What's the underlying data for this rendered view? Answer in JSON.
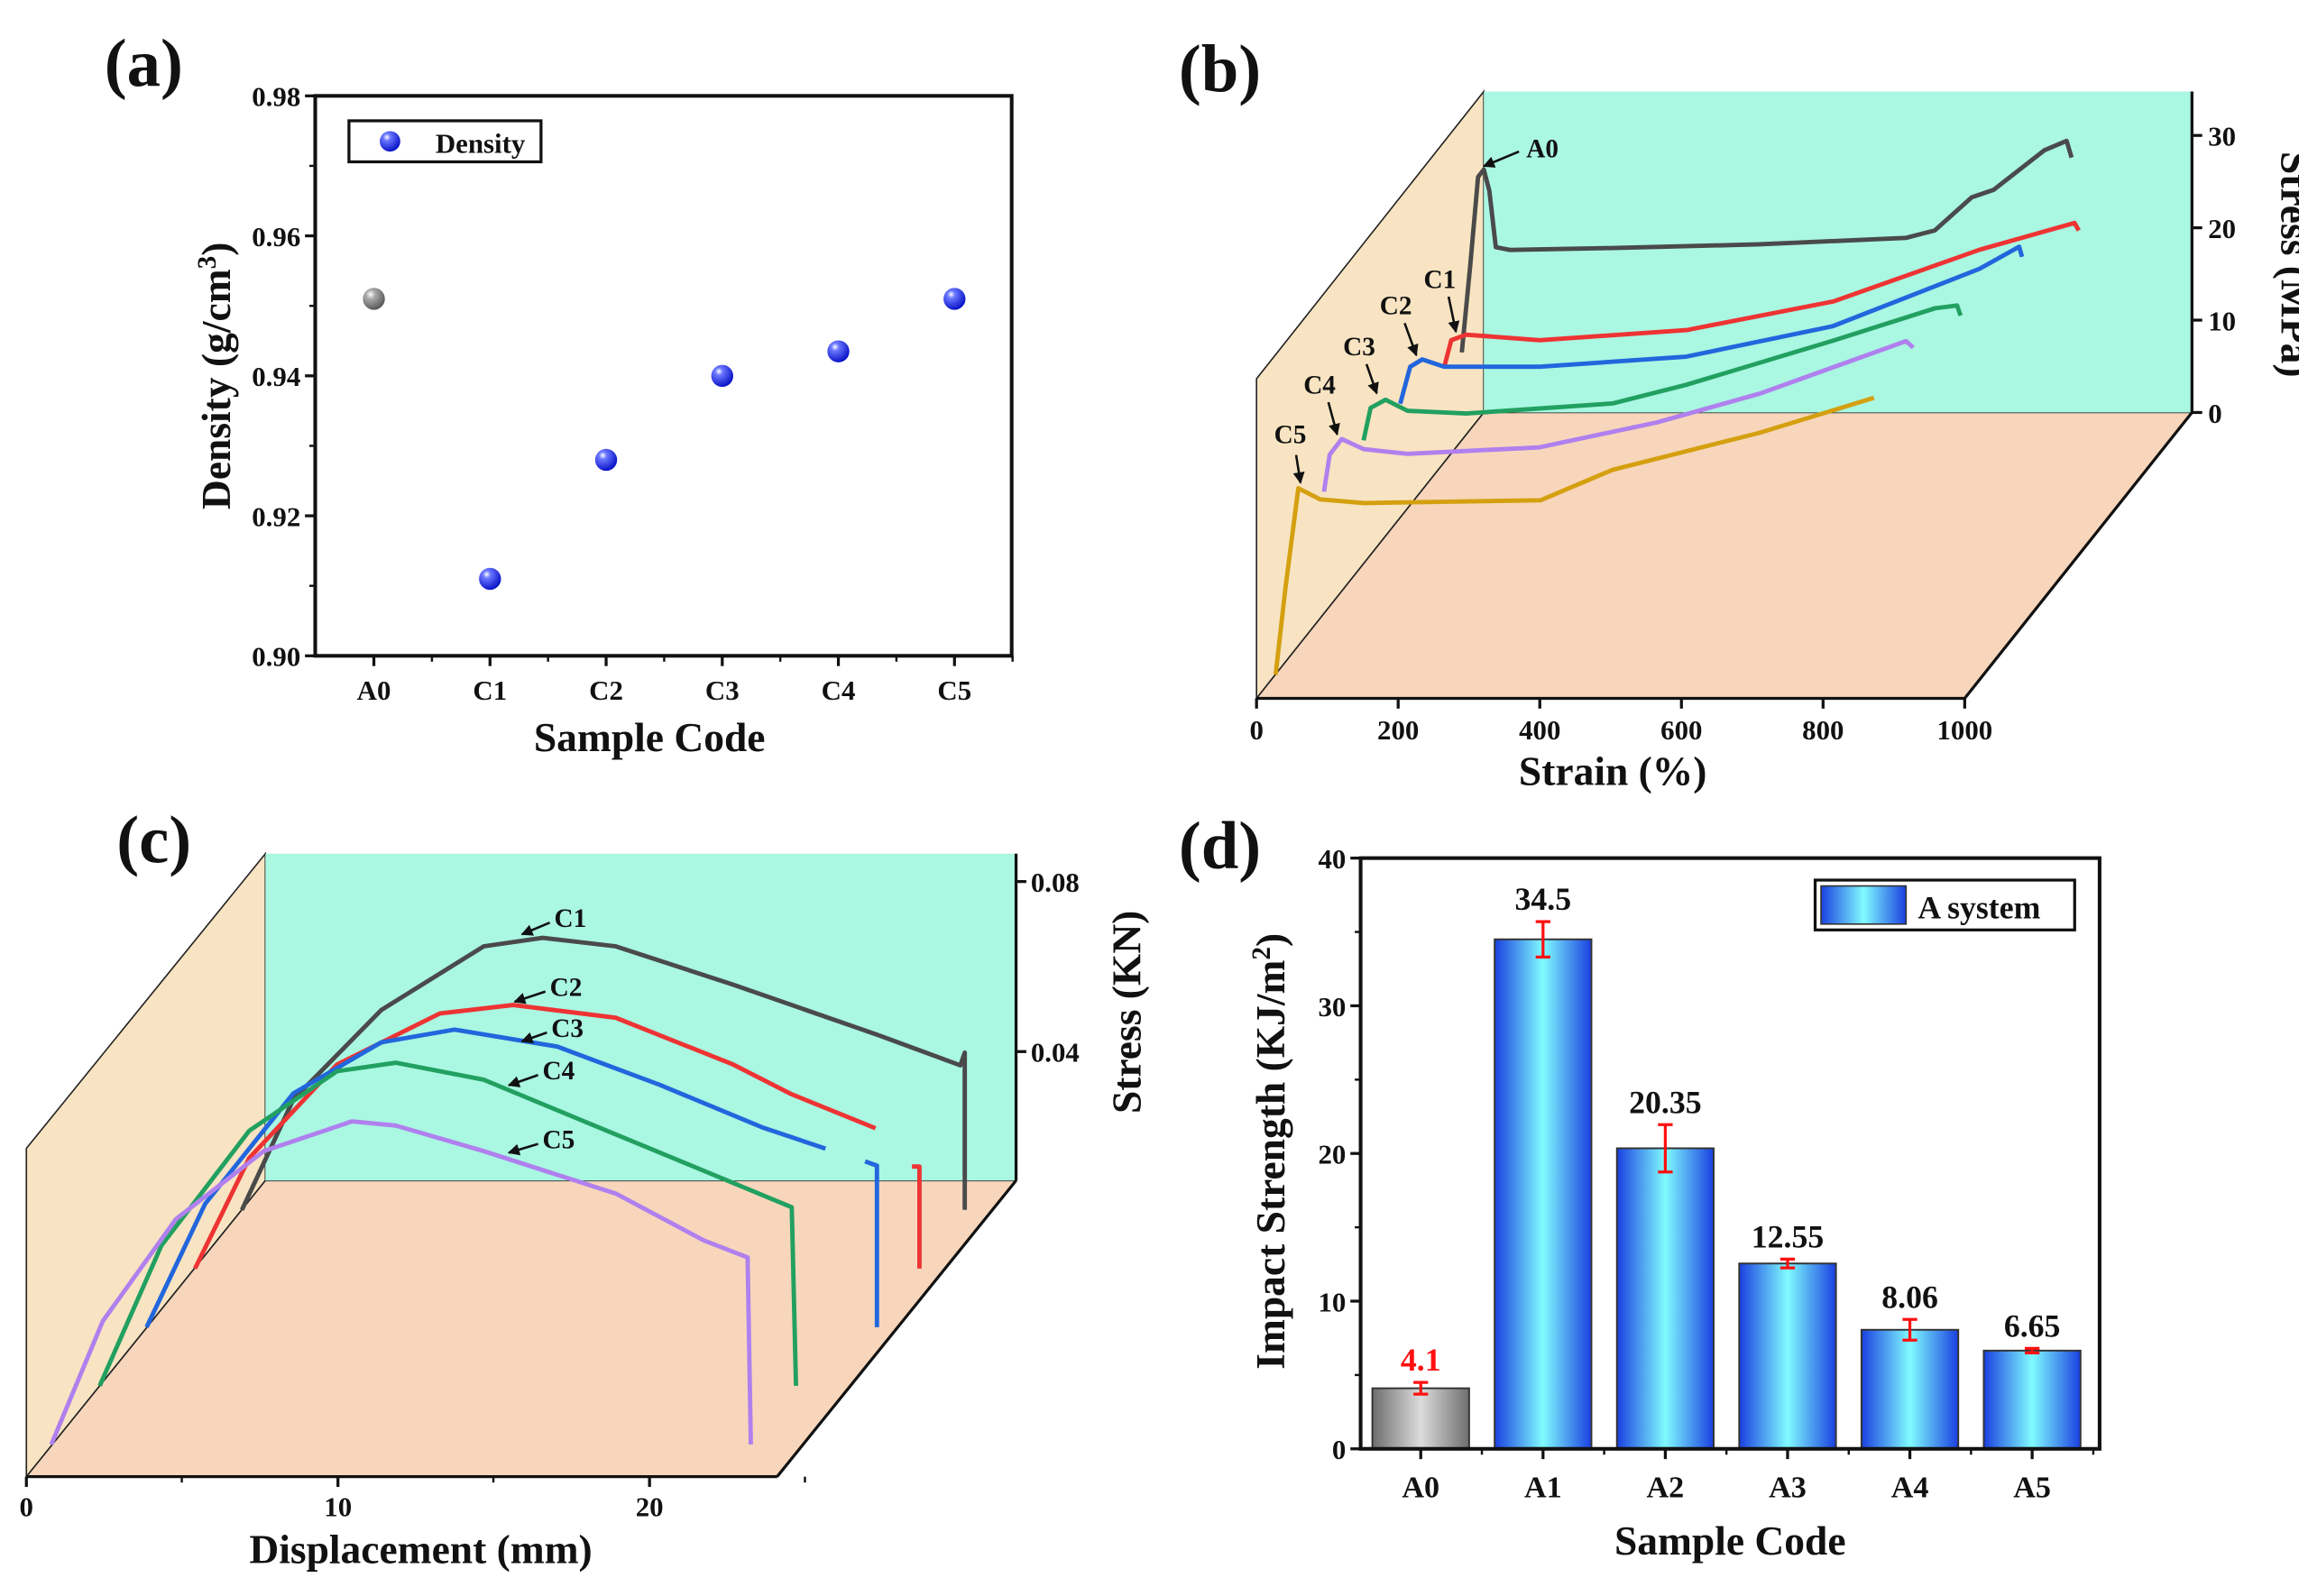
{
  "chart_data": [
    {
      "type": "scatter",
      "panel_label": "(a)",
      "xlabel": "Sample Code",
      "ylabel": "Density (g/cm",
      "ylabel_sup": "3",
      "ylabel_end": ")",
      "categories": [
        "A0",
        "C1",
        "C2",
        "C3",
        "C4",
        "C5"
      ],
      "values": [
        0.951,
        0.911,
        0.928,
        0.94,
        0.9435,
        0.951
      ],
      "point_colors": [
        "#8a8a8a",
        "#0a14f0",
        "#0a14f0",
        "#0a14f0",
        "#0a14f0",
        "#0a14f0"
      ],
      "ylim": [
        0.9,
        0.98
      ],
      "yticks": [
        "0.90",
        "0.92",
        "0.94",
        "0.96",
        "0.98"
      ],
      "legend": {
        "label": "Density",
        "placement": "top-left"
      },
      "grid": false
    },
    {
      "type": "line",
      "panel_label": "(b)",
      "xlabel": "Strain (%)",
      "ylabel": "Stress (MPa)",
      "xlim": [
        0,
        1000
      ],
      "ylim": [
        0,
        30
      ],
      "xticks": [
        "0",
        "200",
        "400",
        "600",
        "800",
        "1000"
      ],
      "yticks": [
        "0",
        "10",
        "20",
        "30"
      ],
      "style": "3d-waterfall",
      "colors": {
        "back_wall": "#aaf7e2",
        "side_wall": "#f8e4c2",
        "floor": "#f8d6bb"
      },
      "series": [
        {
          "name": "A0",
          "color": "#4a4a4a",
          "points": [
            [
              0,
              0
            ],
            [
              12,
              9.5
            ],
            [
              23,
              19
            ],
            [
              31,
              19.8
            ],
            [
              39,
              17.5
            ],
            [
              48,
              11.4
            ],
            [
              68,
              11.1
            ],
            [
              213,
              11.3
            ],
            [
              420,
              11.7
            ],
            [
              627,
              12.4
            ],
            [
              668,
              13.2
            ],
            [
              720,
              16.8
            ],
            [
              751,
              17.6
            ],
            [
              823,
              21.9
            ],
            [
              854,
              22.9
            ],
            [
              861,
              21.1
            ]
          ]
        },
        {
          "name": "C1",
          "color": "#ee3333",
          "points": [
            [
              0,
              0
            ],
            [
              10,
              2.9
            ],
            [
              31,
              3.5
            ],
            [
              135,
              2.9
            ],
            [
              342,
              4.0
            ],
            [
              549,
              7.1
            ],
            [
              756,
              12.7
            ],
            [
              890,
              15.6
            ],
            [
              896,
              14.8
            ]
          ]
        },
        {
          "name": "C2",
          "color": "#2266dd",
          "points": [
            [
              0,
              0
            ],
            [
              14,
              4.0
            ],
            [
              31,
              4.8
            ],
            [
              62,
              4.0
            ],
            [
              197,
              4.0
            ],
            [
              404,
              5.1
            ],
            [
              611,
              8.4
            ],
            [
              818,
              14.6
            ],
            [
              874,
              17.0
            ],
            [
              878,
              15.9
            ]
          ]
        },
        {
          "name": "C3",
          "color": "#22a060",
          "points": [
            [
              0,
              0
            ],
            [
              10,
              3.5
            ],
            [
              31,
              4.4
            ],
            [
              62,
              3.2
            ],
            [
              145,
              2.9
            ],
            [
              352,
              4.0
            ],
            [
              455,
              6.0
            ],
            [
              663,
              10.8
            ],
            [
              807,
              14.3
            ],
            [
              838,
              14.6
            ],
            [
              843,
              13.5
            ]
          ]
        },
        {
          "name": "C4",
          "color": "#b080ee",
          "points": [
            [
              0,
              0
            ],
            [
              8,
              4.0
            ],
            [
              25,
              5.7
            ],
            [
              56,
              4.6
            ],
            [
              118,
              4.1
            ],
            [
              304,
              4.8
            ],
            [
              470,
              7.5
            ],
            [
              615,
              10.6
            ],
            [
              822,
              16.3
            ],
            [
              832,
              15.6
            ]
          ]
        },
        {
          "name": "C5",
          "color": "#d4a010",
          "points": [
            [
              0,
              0
            ],
            [
              14,
              9.5
            ],
            [
              32,
              20.2
            ],
            [
              63,
              19
            ],
            [
              125,
              18.6
            ],
            [
              374,
              18.9
            ],
            [
              476,
              22.2
            ],
            [
              683,
              26.2
            ],
            [
              845,
              30
            ]
          ]
        }
      ]
    },
    {
      "type": "line",
      "panel_label": "(c)",
      "xlabel": "Displacement (mm)",
      "ylabel": "Stress (KN)",
      "xticks": [
        "0",
        "10",
        "20"
      ],
      "yticks": [
        "0.04",
        "0.08"
      ],
      "style": "3d-waterfall",
      "colors": {
        "back_wall": "#aaf7e2",
        "side_wall": "#f8e4c2",
        "floor": "#f8d6bb"
      },
      "series": [
        {
          "name": "C1",
          "color": "#4a4a4a",
          "points": [
            [
              0,
              0
            ],
            [
              1.65,
              0.026
            ],
            [
              4.47,
              0.047
            ],
            [
              7.76,
              0.062
            ],
            [
              9.65,
              0.064
            ],
            [
              12.0,
              0.062
            ],
            [
              15.76,
              0.053
            ],
            [
              20.47,
              0.041
            ],
            [
              23.06,
              0.034
            ],
            [
              23.2,
              0.037
            ],
            [
              23.2,
              0
            ]
          ],
          "tail": []
        },
        {
          "name": "C2",
          "color": "#ee3333",
          "points": [
            [
              0,
              0
            ],
            [
              1.74,
              0.026
            ],
            [
              4.56,
              0.048
            ],
            [
              7.86,
              0.06
            ],
            [
              10.21,
              0.062
            ],
            [
              13.5,
              0.059
            ],
            [
              17.27,
              0.048
            ],
            [
              19.15,
              0.041
            ],
            [
              21.84,
              0.033
            ]
          ],
          "tail": [
            [
              23.01,
              0.024
            ],
            [
              23.25,
              0.024
            ],
            [
              23.25,
              0
            ]
          ]
        },
        {
          "name": "C3",
          "color": "#2266dd",
          "points": [
            [
              0,
              0
            ],
            [
              1.88,
              0.029
            ],
            [
              4.71,
              0.055
            ],
            [
              7.53,
              0.067
            ],
            [
              9.88,
              0.07
            ],
            [
              13.18,
              0.066
            ],
            [
              16.47,
              0.057
            ],
            [
              19.76,
              0.047
            ],
            [
              21.79,
              0.042
            ]
          ],
          "tail": [
            [
              23.06,
              0.039
            ],
            [
              23.44,
              0.038
            ],
            [
              23.44,
              0
            ]
          ]
        },
        {
          "name": "C4",
          "color": "#22a060",
          "points": [
            [
              0,
              0
            ],
            [
              1.98,
              0.033
            ],
            [
              4.8,
              0.06
            ],
            [
              7.62,
              0.074
            ],
            [
              9.51,
              0.076
            ],
            [
              12.33,
              0.072
            ],
            [
              15.62,
              0.062
            ],
            [
              18.92,
              0.052
            ],
            [
              22.21,
              0.042
            ],
            [
              22.35,
              0
            ]
          ],
          "tail": []
        },
        {
          "name": "C5",
          "color": "#b080ee",
          "points": [
            [
              0,
              0
            ],
            [
              1.65,
              0.029
            ],
            [
              4.0,
              0.053
            ],
            [
              6.82,
              0.069
            ],
            [
              9.65,
              0.076
            ],
            [
              11.06,
              0.075
            ],
            [
              13.88,
              0.069
            ],
            [
              18.12,
              0.059
            ],
            [
              20.94,
              0.048
            ],
            [
              22.35,
              0.044
            ],
            [
              22.45,
              0
            ]
          ],
          "tail": []
        }
      ]
    },
    {
      "type": "bar",
      "panel_label": "(d)",
      "xlabel": "Sample Code",
      "ylabel": "Impact Strength (KJ/m",
      "ylabel_sup": "2",
      "ylabel_end": ")",
      "categories": [
        "A0",
        "A1",
        "A2",
        "A3",
        "A4",
        "A5"
      ],
      "values": [
        4.1,
        34.5,
        20.35,
        12.55,
        8.06,
        6.65
      ],
      "value_labels": [
        "4.1",
        "34.5",
        "20.35",
        "12.55",
        "8.06",
        "6.65"
      ],
      "errors": [
        0.4,
        1.2,
        1.6,
        0.3,
        0.7,
        0.15
      ],
      "label_colors": [
        "#ff1010",
        "#111111",
        "#111111",
        "#111111",
        "#111111",
        "#111111"
      ],
      "bar_style": [
        "gray",
        "blue",
        "blue",
        "blue",
        "blue",
        "blue"
      ],
      "error_color": "#ff1010",
      "ylim": [
        0,
        40
      ],
      "yticks": [
        "0",
        "10",
        "20",
        "30",
        "40"
      ],
      "legend": {
        "label": "A system",
        "placement": "top-right"
      },
      "grid": false
    }
  ]
}
